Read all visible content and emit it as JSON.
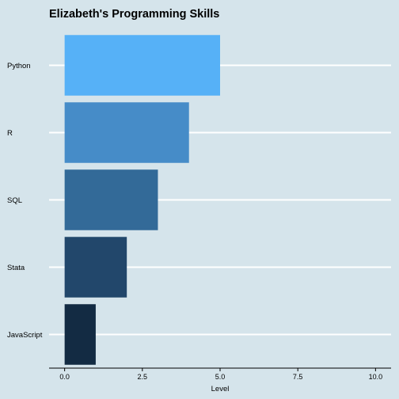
{
  "chart_data": {
    "type": "bar",
    "orientation": "horizontal",
    "title": "Elizabeth's Programming Skills",
    "xlabel": "Level",
    "ylabel": "",
    "categories": [
      "Python",
      "R",
      "SQL",
      "Stata",
      "JavaScript"
    ],
    "values": [
      5,
      4,
      3,
      2,
      1
    ],
    "bar_colors": [
      "#56b1f7",
      "#468cc8",
      "#336a98",
      "#22476b",
      "#132b43"
    ],
    "xlim": [
      -0.5,
      10.5
    ],
    "x_ticks": [
      0,
      2.5,
      5,
      7.5,
      10
    ],
    "x_tick_labels": [
      "0.0",
      "2.5",
      "5.0",
      "7.5",
      "10.0"
    ],
    "grid": "horizontal major lines",
    "legend": "none"
  },
  "colors": {
    "background": "#d5e4eb",
    "gridline": "#ffffff",
    "axis": "#000000"
  }
}
